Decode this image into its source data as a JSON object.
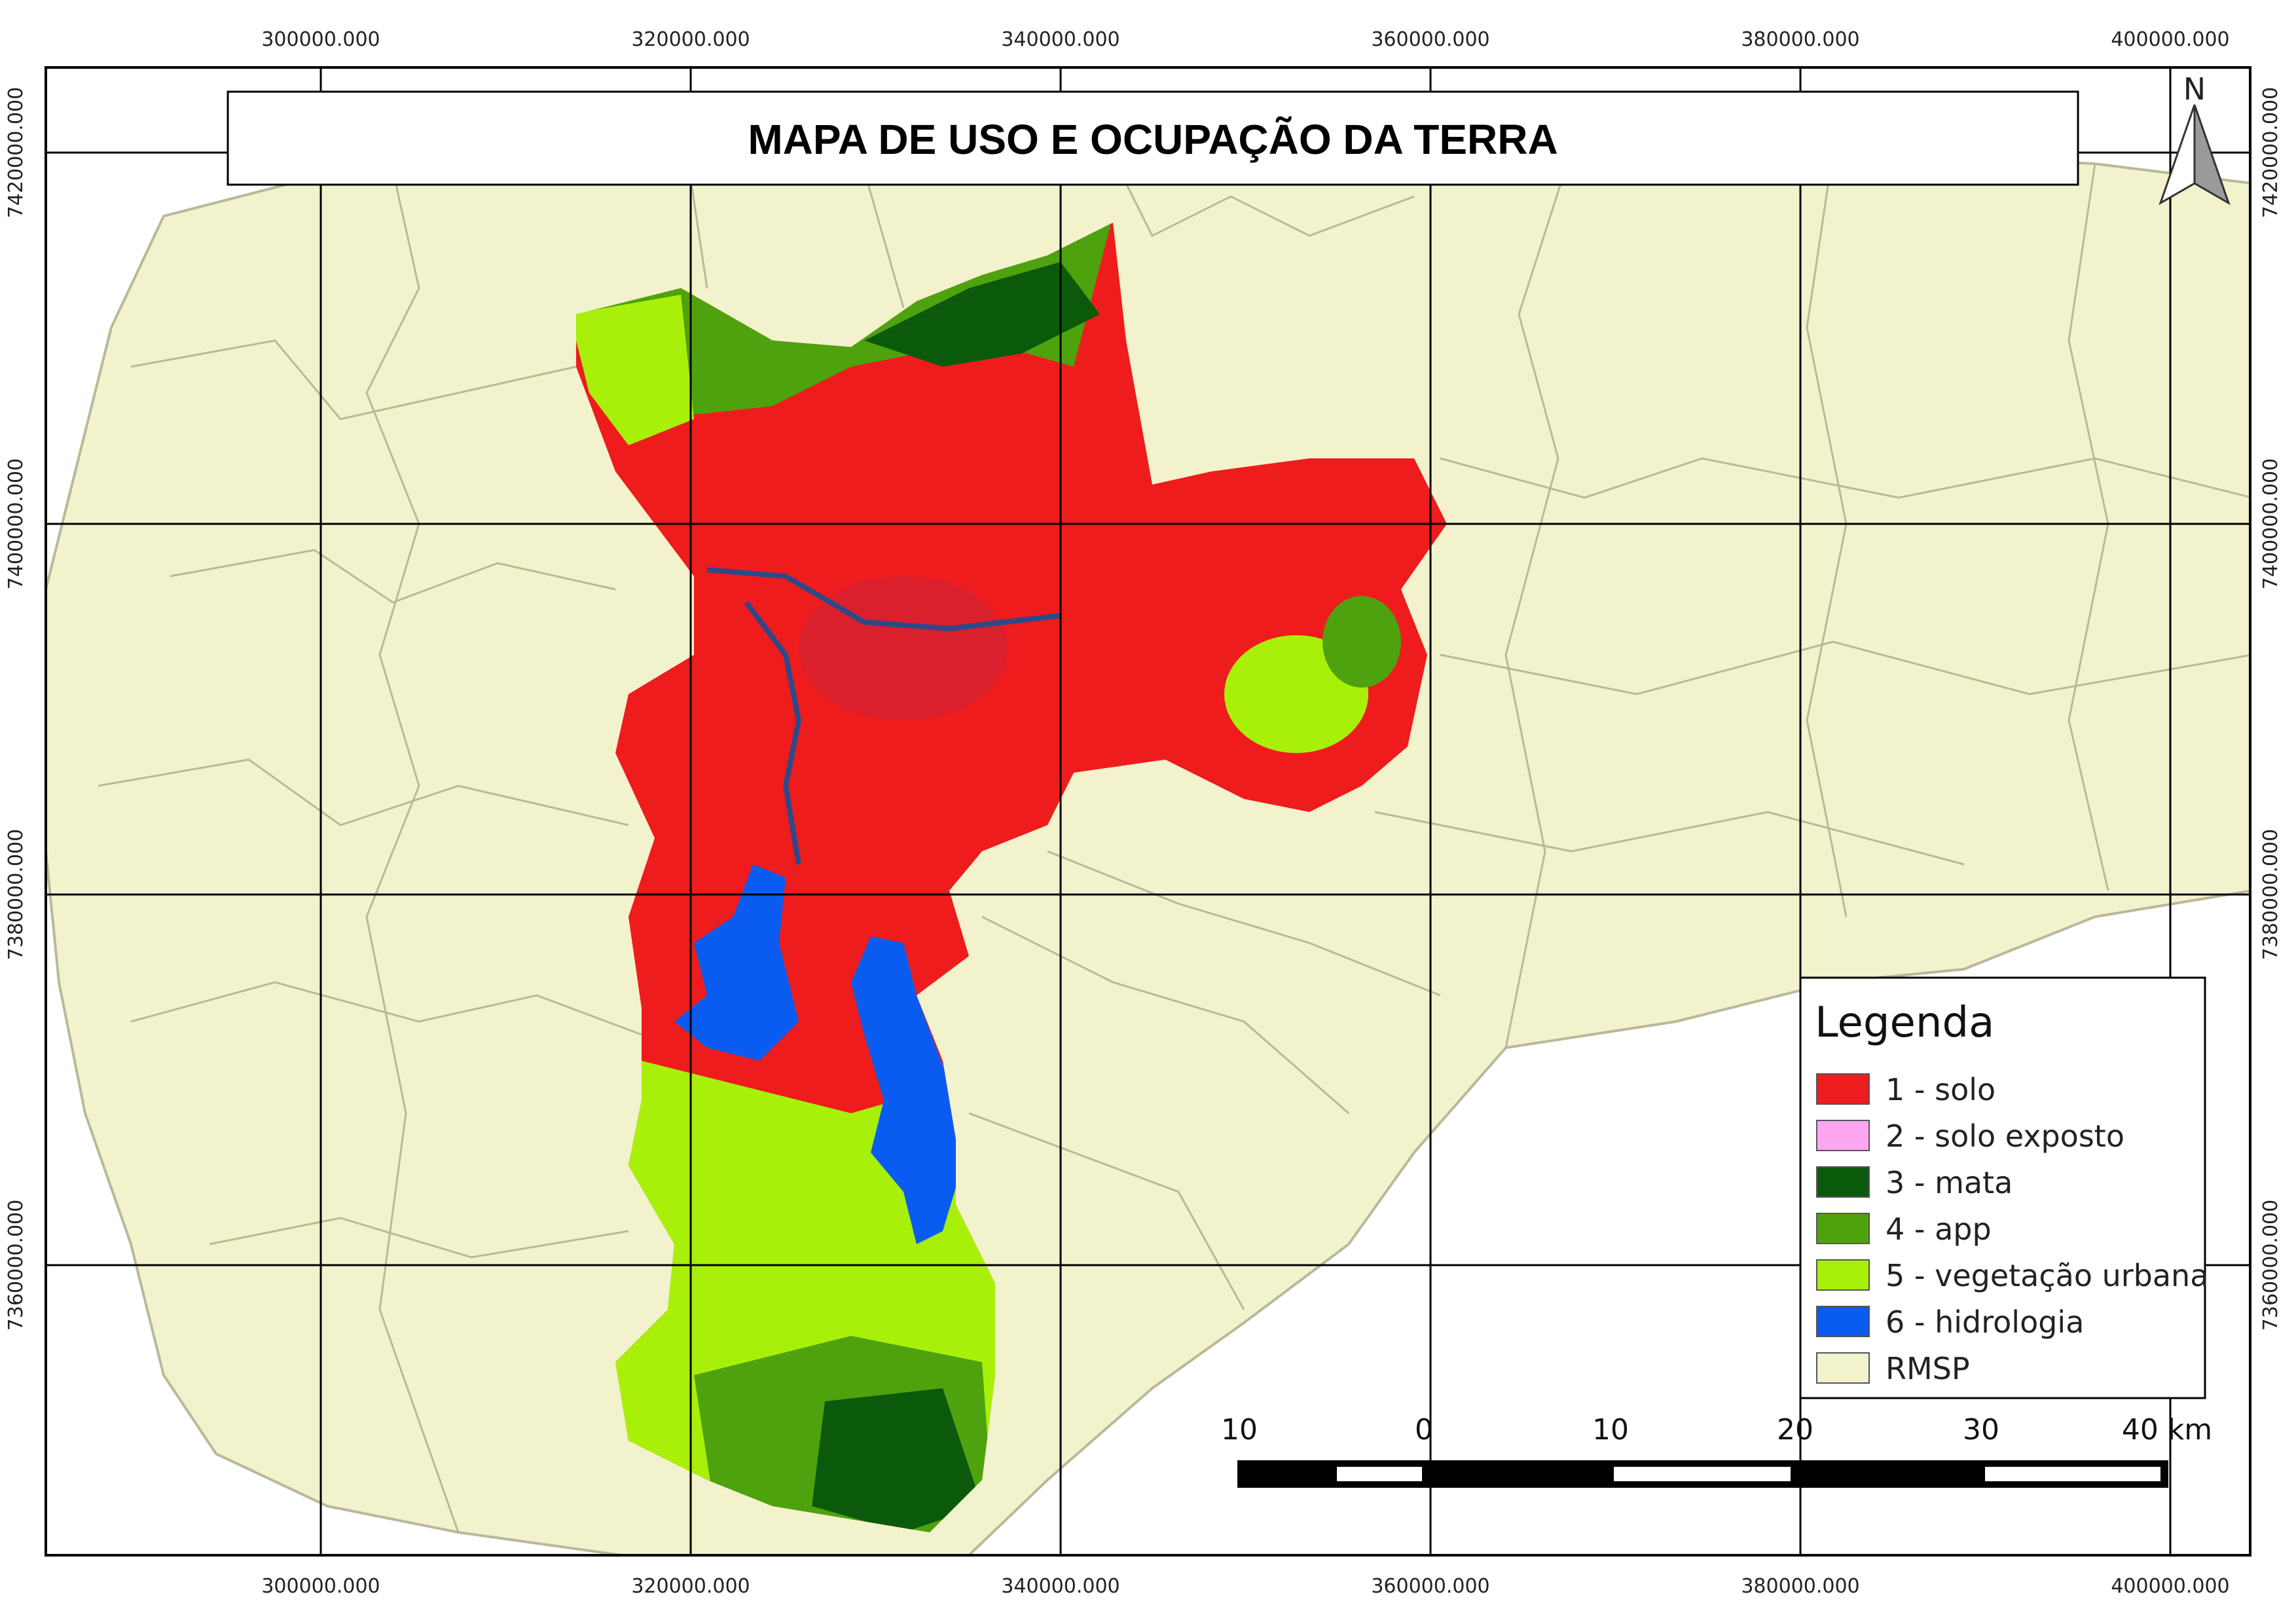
{
  "map": {
    "title": "MAPA DE USO E OCUPAÇÃO DA TERRA",
    "north_arrow_label": "N",
    "x_ticks": [
      "300000.000",
      "320000.000",
      "340000.000",
      "360000.000",
      "380000.000",
      "400000.000"
    ],
    "y_ticks": [
      "7420000.000",
      "7400000.000",
      "7380000.000",
      "7360000.000"
    ],
    "legend": {
      "title": "Legenda",
      "items": [
        {
          "label": "1 - solo",
          "color": "#ee1c1c"
        },
        {
          "label": "2 - solo exposto",
          "color": "#ffa6f3"
        },
        {
          "label": "3 - mata",
          "color": "#0b5a0b"
        },
        {
          "label": "4 - app",
          "color": "#4ea20e"
        },
        {
          "label": "5 - vegetação urbana",
          "color": "#a8f00a"
        },
        {
          "label": "6 - hidrologia",
          "color": "#0a5cf0"
        },
        {
          "label": "RMSP",
          "color": "#f2f2cd"
        }
      ]
    },
    "scale_bar": {
      "labels": [
        "10",
        "0",
        "10",
        "20",
        "30",
        "40 km"
      ]
    },
    "colors": {
      "rmsp_fill": "#f2f2cd",
      "rmsp_border": "#b9b99a",
      "solo": "#ee1c1c",
      "vegetacao": "#a8f00a",
      "mata": "#0b5a0b",
      "hidrologia": "#0a5cf0"
    }
  }
}
